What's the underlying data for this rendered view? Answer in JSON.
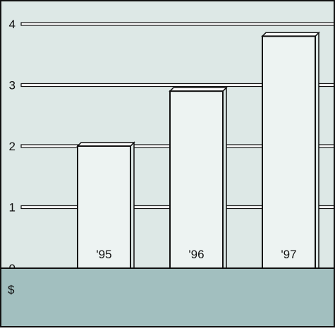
{
  "chart_data": {
    "type": "bar",
    "categories": [
      "'95",
      "'96",
      "'97"
    ],
    "values": [
      2.0,
      2.9,
      3.8
    ],
    "yticks": [
      0,
      1,
      2,
      3,
      4
    ],
    "ylim": [
      0,
      4
    ],
    "ylabel": "$",
    "grid": true,
    "legend": "none",
    "colors": {
      "plot_background": "#dde8e6",
      "floor": "#a2bfbf",
      "bar_face": "#edf3f2",
      "bar_side": "#dde8e6",
      "outline": "#111111"
    }
  }
}
